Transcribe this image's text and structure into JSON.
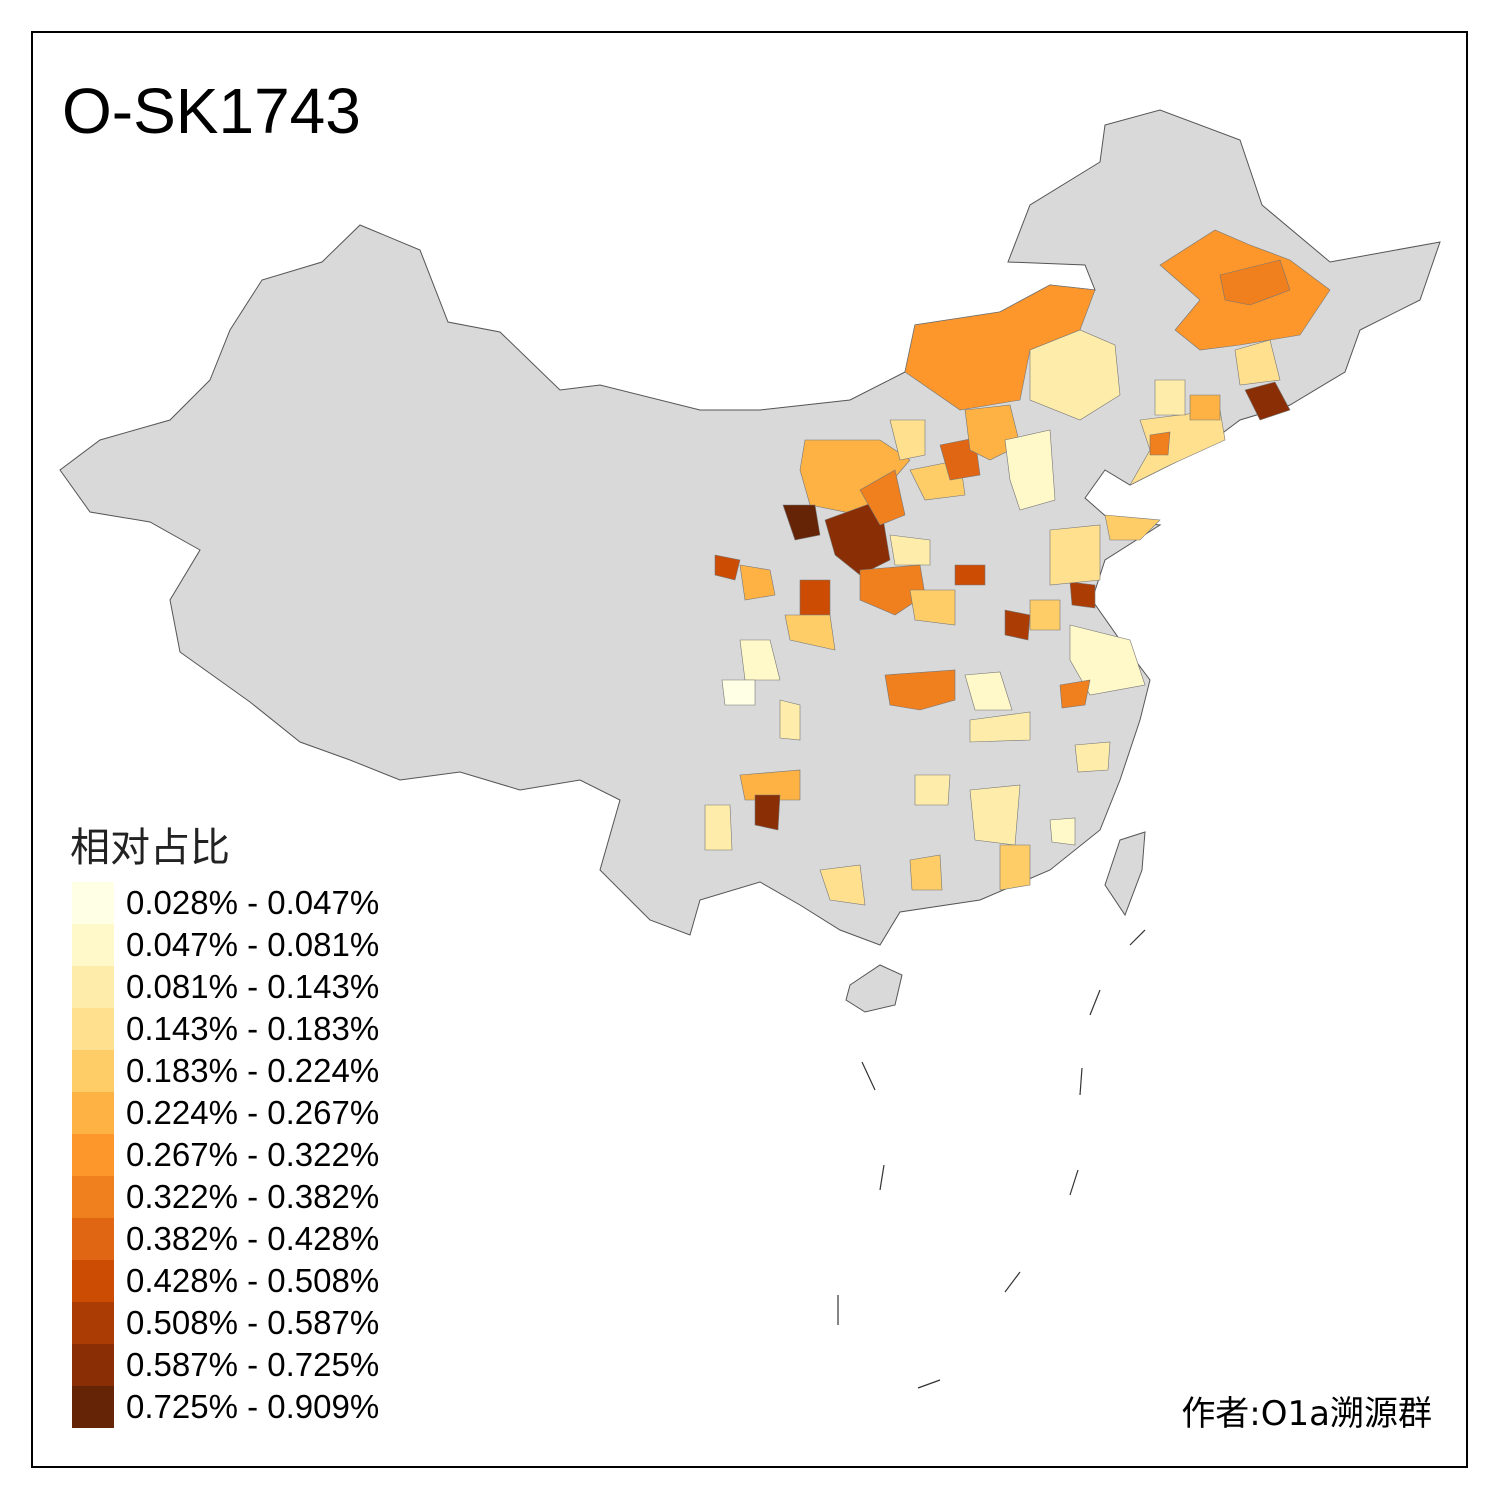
{
  "title": "O-SK1743",
  "legend": {
    "title": "相对占比",
    "items": [
      {
        "label": "0.028% - 0.047%",
        "color": "#FFFFE5"
      },
      {
        "label": "0.047% - 0.081%",
        "color": "#FFF8C8"
      },
      {
        "label": "0.081% - 0.143%",
        "color": "#FEEDAA"
      },
      {
        "label": "0.143% - 0.183%",
        "color": "#FEE08F"
      },
      {
        "label": "0.183% - 0.224%",
        "color": "#FECD68"
      },
      {
        "label": "0.224% - 0.267%",
        "color": "#FEB244"
      },
      {
        "label": "0.267% - 0.322%",
        "color": "#FD962B"
      },
      {
        "label": "0.322% - 0.382%",
        "color": "#F07F1E"
      },
      {
        "label": "0.382% - 0.428%",
        "color": "#E06614"
      },
      {
        "label": "0.428% - 0.508%",
        "color": "#CC4C03"
      },
      {
        "label": "0.508% - 0.587%",
        "color": "#AA3C04"
      },
      {
        "label": "0.587% - 0.725%",
        "color": "#8A2E05"
      },
      {
        "label": "0.725% - 0.909%",
        "color": "#662407"
      }
    ]
  },
  "base_color": "#D9D9D9",
  "author": "作者:O1a溯源群"
}
